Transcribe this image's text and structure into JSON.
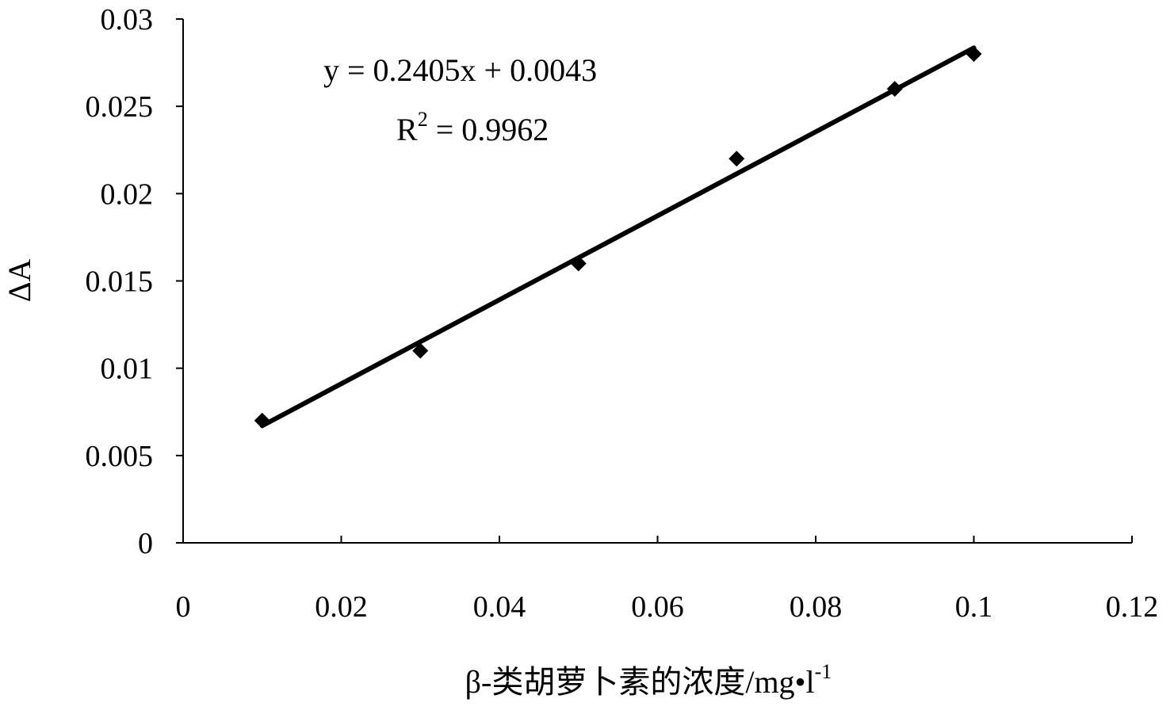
{
  "chart_data": {
    "type": "scatter",
    "xlabel": "β-类胡萝卜素的浓度/mg•l",
    "xlabel_sup": "-1",
    "ylabel": "ΔA",
    "xlim": [
      0,
      0.12
    ],
    "ylim": [
      0,
      0.03
    ],
    "x_ticks": [
      {
        "value": 0,
        "label": "0"
      },
      {
        "value": 0.02,
        "label": "0.02"
      },
      {
        "value": 0.04,
        "label": "0.04"
      },
      {
        "value": 0.06,
        "label": "0.06"
      },
      {
        "value": 0.08,
        "label": "0.08"
      },
      {
        "value": 0.1,
        "label": "0.1"
      },
      {
        "value": 0.12,
        "label": "0.12"
      }
    ],
    "y_ticks": [
      {
        "value": 0,
        "label": "0"
      },
      {
        "value": 0.005,
        "label": "0.005"
      },
      {
        "value": 0.01,
        "label": "0.01"
      },
      {
        "value": 0.015,
        "label": "0.015"
      },
      {
        "value": 0.02,
        "label": "0.02"
      },
      {
        "value": 0.025,
        "label": "0.025"
      },
      {
        "value": 0.03,
        "label": "0.03"
      }
    ],
    "points": [
      {
        "x": 0.01,
        "y": 0.007
      },
      {
        "x": 0.03,
        "y": 0.011
      },
      {
        "x": 0.05,
        "y": 0.016
      },
      {
        "x": 0.07,
        "y": 0.022
      },
      {
        "x": 0.09,
        "y": 0.026
      },
      {
        "x": 0.1,
        "y": 0.028
      }
    ],
    "trendline": {
      "slope": 0.2405,
      "intercept": 0.0043,
      "x_start": 0.01,
      "x_end": 0.1
    },
    "equation_text": "y = 0.2405x + 0.0043",
    "r2_prefix": "R",
    "r2_sup": "2",
    "r2_suffix": " = 0.9962",
    "grid": false,
    "legend": "none",
    "marker_color": "#000000",
    "line_color": "#000000"
  }
}
